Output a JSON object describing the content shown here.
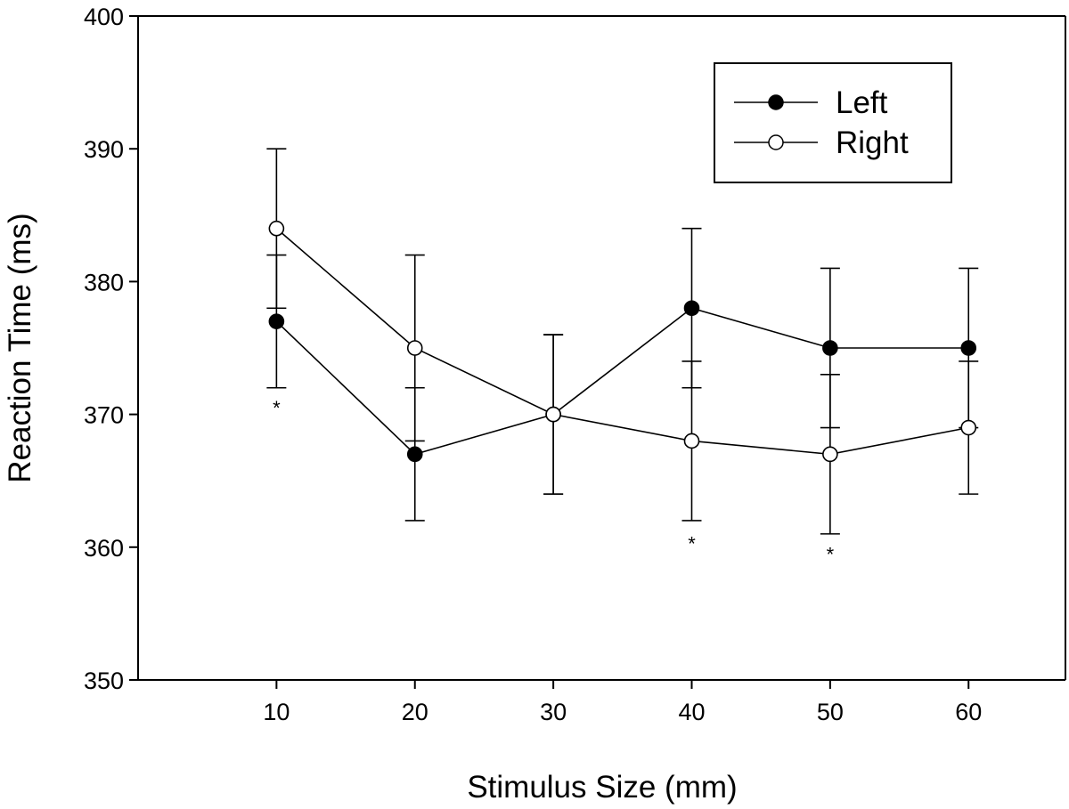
{
  "chart_data": {
    "type": "line",
    "title": "",
    "xlabel": "Stimulus Size (mm)",
    "ylabel": "Reaction Time (ms)",
    "x": [
      10,
      20,
      30,
      40,
      50,
      60
    ],
    "x_tick_labels": [
      "10",
      "20",
      "30",
      "40",
      "50",
      "60"
    ],
    "y_tick_labels": [
      "350",
      "360",
      "370",
      "380",
      "390",
      "400"
    ],
    "xlim": [
      0,
      67
    ],
    "ylim": [
      350,
      400
    ],
    "yticks": [
      350,
      360,
      370,
      380,
      390,
      400
    ],
    "grid": false,
    "legend_position": "top-right",
    "series": [
      {
        "name": "Left",
        "marker": "filled-circle",
        "color": "#000000",
        "values": [
          377,
          367,
          370,
          378,
          375,
          375
        ],
        "error": [
          5,
          5,
          6,
          6,
          6,
          6
        ]
      },
      {
        "name": "Right",
        "marker": "open-circle",
        "color": "#000000",
        "values": [
          384,
          375,
          370,
          368,
          367,
          369
        ],
        "error": [
          6,
          7,
          6,
          6,
          6,
          5
        ]
      }
    ],
    "annotations": [
      {
        "text": "*",
        "x": 10,
        "y": 370.5
      },
      {
        "text": "*",
        "x": 40,
        "y": 360.3
      },
      {
        "text": "*",
        "x": 50,
        "y": 359.5
      }
    ]
  }
}
